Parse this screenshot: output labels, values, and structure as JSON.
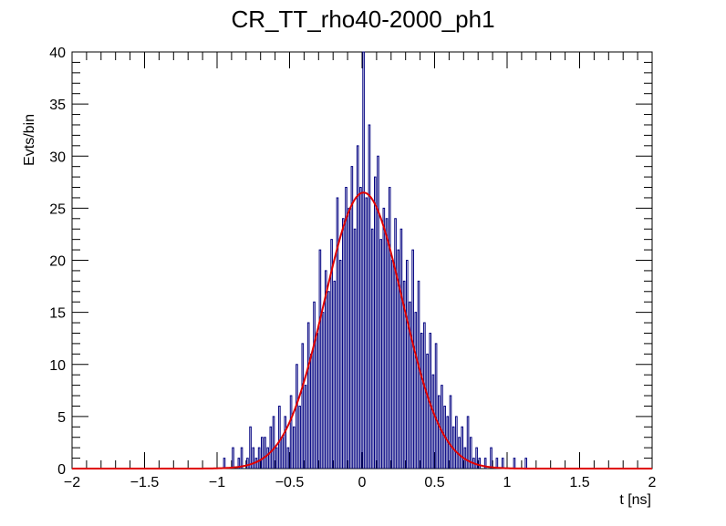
{
  "chart_data": {
    "type": "histogram",
    "title": "CR_TT_rho40-2000_ph1",
    "xlabel": "t [ns]",
    "ylabel": "Evts/bin",
    "xlim": [
      -2,
      2
    ],
    "ylim": [
      0,
      40
    ],
    "x_ticks": [
      -2,
      -1.5,
      -1,
      -0.5,
      0,
      0.5,
      1,
      1.5,
      2
    ],
    "x_tick_labels": [
      "−2",
      "−1.5",
      "−1",
      "−0.5",
      "0",
      "0.5",
      "1",
      "1.5",
      "2"
    ],
    "y_ticks": [
      0,
      5,
      10,
      15,
      20,
      25,
      30,
      35,
      40
    ],
    "y_tick_labels": [
      "0",
      "5",
      "10",
      "15",
      "20",
      "25",
      "30",
      "35",
      "40"
    ],
    "bin_width": 0.01,
    "histogram_color": "#000080",
    "histogram": [
      {
        "x": -0.95,
        "y": 1
      },
      {
        "x": -0.89,
        "y": 2
      },
      {
        "x": -0.85,
        "y": 1
      },
      {
        "x": -0.83,
        "y": 2
      },
      {
        "x": -0.79,
        "y": 1
      },
      {
        "x": -0.77,
        "y": 4
      },
      {
        "x": -0.75,
        "y": 2
      },
      {
        "x": -0.73,
        "y": 1
      },
      {
        "x": -0.71,
        "y": 2
      },
      {
        "x": -0.69,
        "y": 3
      },
      {
        "x": -0.67,
        "y": 3
      },
      {
        "x": -0.65,
        "y": 2
      },
      {
        "x": -0.63,
        "y": 4
      },
      {
        "x": -0.61,
        "y": 5
      },
      {
        "x": -0.59,
        "y": 2
      },
      {
        "x": -0.57,
        "y": 6
      },
      {
        "x": -0.55,
        "y": 3
      },
      {
        "x": -0.53,
        "y": 5
      },
      {
        "x": -0.51,
        "y": 2
      },
      {
        "x": -0.49,
        "y": 7
      },
      {
        "x": -0.47,
        "y": 4
      },
      {
        "x": -0.45,
        "y": 10
      },
      {
        "x": -0.43,
        "y": 6
      },
      {
        "x": -0.41,
        "y": 12
      },
      {
        "x": -0.39,
        "y": 8
      },
      {
        "x": -0.37,
        "y": 14
      },
      {
        "x": -0.35,
        "y": 11
      },
      {
        "x": -0.33,
        "y": 16
      },
      {
        "x": -0.31,
        "y": 13
      },
      {
        "x": -0.29,
        "y": 21
      },
      {
        "x": -0.27,
        "y": 15
      },
      {
        "x": -0.25,
        "y": 19
      },
      {
        "x": -0.23,
        "y": 17
      },
      {
        "x": -0.21,
        "y": 22
      },
      {
        "x": -0.19,
        "y": 18
      },
      {
        "x": -0.17,
        "y": 26
      },
      {
        "x": -0.15,
        "y": 20
      },
      {
        "x": -0.13,
        "y": 24
      },
      {
        "x": -0.11,
        "y": 27
      },
      {
        "x": -0.09,
        "y": 25
      },
      {
        "x": -0.07,
        "y": 29
      },
      {
        "x": -0.05,
        "y": 23
      },
      {
        "x": -0.03,
        "y": 31
      },
      {
        "x": -0.01,
        "y": 27
      },
      {
        "x": 0.01,
        "y": 40
      },
      {
        "x": 0.03,
        "y": 26
      },
      {
        "x": 0.05,
        "y": 33
      },
      {
        "x": 0.07,
        "y": 23
      },
      {
        "x": 0.09,
        "y": 28
      },
      {
        "x": 0.11,
        "y": 30
      },
      {
        "x": 0.13,
        "y": 22
      },
      {
        "x": 0.15,
        "y": 25
      },
      {
        "x": 0.17,
        "y": 24
      },
      {
        "x": 0.19,
        "y": 27
      },
      {
        "x": 0.21,
        "y": 20
      },
      {
        "x": 0.23,
        "y": 24
      },
      {
        "x": 0.25,
        "y": 21
      },
      {
        "x": 0.27,
        "y": 23
      },
      {
        "x": 0.29,
        "y": 18
      },
      {
        "x": 0.31,
        "y": 20
      },
      {
        "x": 0.33,
        "y": 16
      },
      {
        "x": 0.35,
        "y": 21
      },
      {
        "x": 0.37,
        "y": 15
      },
      {
        "x": 0.39,
        "y": 18
      },
      {
        "x": 0.41,
        "y": 13
      },
      {
        "x": 0.43,
        "y": 14
      },
      {
        "x": 0.45,
        "y": 11
      },
      {
        "x": 0.47,
        "y": 13
      },
      {
        "x": 0.49,
        "y": 9
      },
      {
        "x": 0.51,
        "y": 12
      },
      {
        "x": 0.53,
        "y": 7
      },
      {
        "x": 0.55,
        "y": 8
      },
      {
        "x": 0.57,
        "y": 6
      },
      {
        "x": 0.59,
        "y": 5
      },
      {
        "x": 0.61,
        "y": 7
      },
      {
        "x": 0.63,
        "y": 4
      },
      {
        "x": 0.65,
        "y": 5
      },
      {
        "x": 0.67,
        "y": 3
      },
      {
        "x": 0.69,
        "y": 4
      },
      {
        "x": 0.71,
        "y": 2
      },
      {
        "x": 0.73,
        "y": 5
      },
      {
        "x": 0.75,
        "y": 3
      },
      {
        "x": 0.77,
        "y": 1
      },
      {
        "x": 0.79,
        "y": 2
      },
      {
        "x": 0.81,
        "y": 1
      },
      {
        "x": 0.85,
        "y": 1
      },
      {
        "x": 0.89,
        "y": 2
      },
      {
        "x": 0.93,
        "y": 1
      },
      {
        "x": 0.97,
        "y": 1
      },
      {
        "x": 1.05,
        "y": 1
      },
      {
        "x": 1.13,
        "y": 1
      }
    ],
    "fit": {
      "type": "gaussian",
      "amplitude": 26.5,
      "mean": 0.01,
      "sigma": 0.27,
      "color": "#e00000"
    }
  }
}
